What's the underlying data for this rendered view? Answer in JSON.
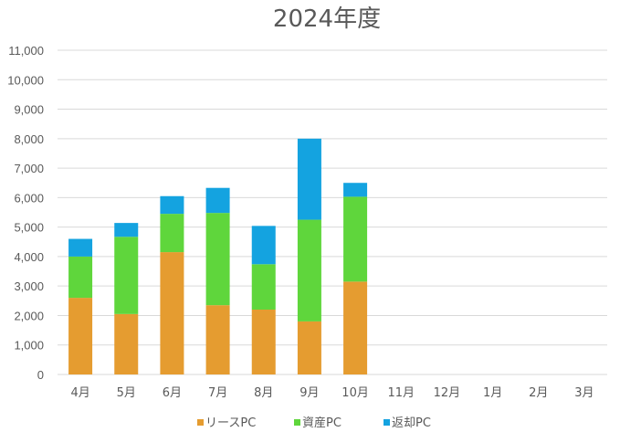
{
  "chart_data": {
    "type": "bar",
    "stacked": true,
    "title": "2024年度",
    "xlabel": "",
    "ylabel": "",
    "categories": [
      "4月",
      "5月",
      "6月",
      "7月",
      "8月",
      "9月",
      "10月",
      "11月",
      "12月",
      "1月",
      "2月",
      "3月"
    ],
    "series": [
      {
        "name": "リースPC",
        "color": "#e59c30",
        "values": [
          2600,
          2050,
          4150,
          2350,
          2200,
          1800,
          3150,
          0,
          0,
          0,
          0,
          0
        ]
      },
      {
        "name": "資産PC",
        "color": "#5fd63c",
        "values": [
          1400,
          2620,
          1300,
          3130,
          1540,
          3450,
          2880,
          0,
          0,
          0,
          0,
          0
        ]
      },
      {
        "name": "返却PC",
        "color": "#14a3e0",
        "values": [
          600,
          470,
          600,
          850,
          1300,
          2750,
          470,
          0,
          0,
          0,
          0,
          0
        ]
      }
    ],
    "ylim": [
      0,
      11000
    ],
    "yticks": [
      "0",
      "1,000",
      "2,000",
      "3,000",
      "4,000",
      "5,000",
      "6,000",
      "7,000",
      "8,000",
      "9,000",
      "10,000",
      "11,000"
    ],
    "grid": true,
    "legend_position": "bottom"
  }
}
